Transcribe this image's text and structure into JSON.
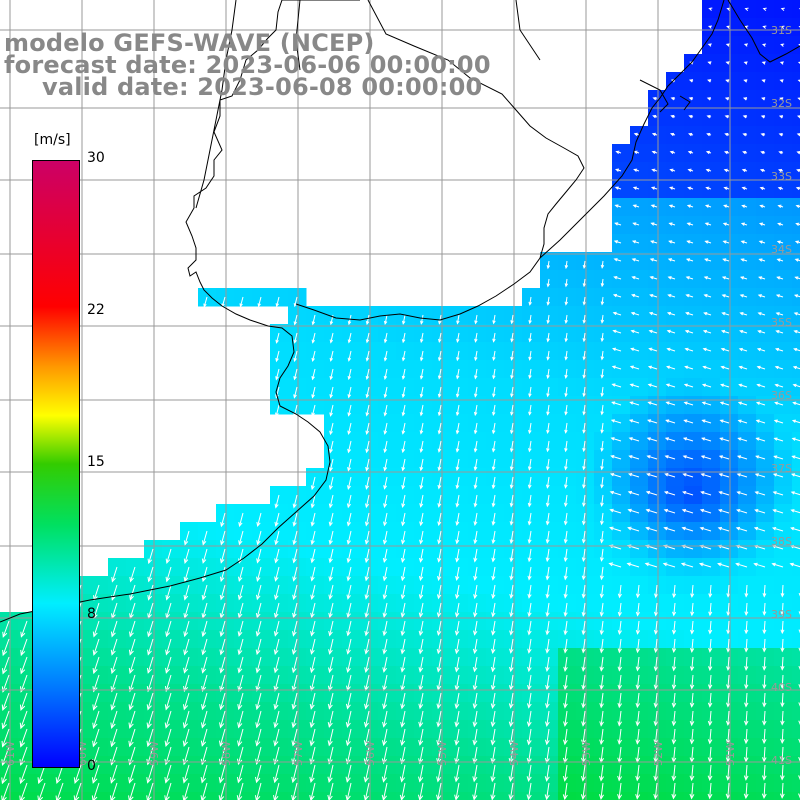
{
  "title": {
    "line1": "modelo GEFS-WAVE (NCEP)",
    "line2": "forecast date: 2023-06-06 00:00:00",
    "line3": "valid date: 2023-06-08 00:00:00"
  },
  "colorbar": {
    "unit": "[m/s]",
    "ticks": [
      "30",
      "22",
      "15",
      "8",
      "0"
    ],
    "colors": [
      "#0000ff",
      "#0077ff",
      "#00eeff",
      "#00e060",
      "#33cc00",
      "#ffff00",
      "#ff9900",
      "#ff0000",
      "#cc0066"
    ]
  },
  "lat_labels": [
    "31S",
    "32S",
    "33S",
    "34S",
    "35S",
    "36S",
    "37S",
    "38S",
    "39S",
    "40S",
    "41S"
  ],
  "lon_labels": [
    "61W",
    "60W",
    "59W",
    "58W",
    "57W",
    "56W",
    "55W",
    "54W",
    "53W",
    "52W",
    "51W"
  ],
  "map": {
    "land_color": "#ffffff",
    "grid_color": "#999999",
    "coast_color": "#000000",
    "vector_color": "#ffffff"
  }
}
